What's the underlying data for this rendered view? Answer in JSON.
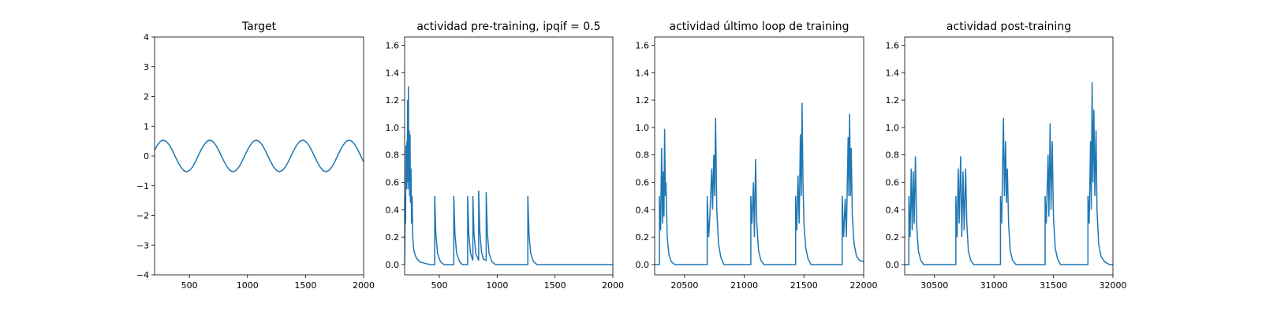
{
  "chart_data": [
    {
      "type": "line",
      "title": "Target",
      "color": "#1f77b4",
      "x": [
        200,
        225,
        250,
        275,
        300,
        325,
        350,
        375,
        400,
        425,
        450,
        475,
        500,
        525,
        550,
        575,
        600,
        625,
        650,
        675,
        700,
        725,
        750,
        775,
        800,
        825,
        850,
        875,
        900,
        925,
        950,
        975,
        1000,
        1025,
        1050,
        1075,
        1100,
        1125,
        1150,
        1175,
        1200,
        1225,
        1250,
        1275,
        1300,
        1325,
        1350,
        1375,
        1400,
        1425,
        1450,
        1475,
        1500,
        1525,
        1550,
        1575,
        1600,
        1625,
        1650,
        1675,
        1700,
        1725,
        1750,
        1775,
        1800,
        1825,
        1850,
        1875,
        1900,
        1925,
        1950,
        1975,
        2000
      ],
      "values": [
        0.2,
        0.37,
        0.49,
        0.53,
        0.49,
        0.38,
        0.21,
        0.0,
        -0.2,
        -0.37,
        -0.49,
        -0.53,
        -0.49,
        -0.38,
        -0.21,
        0.0,
        0.2,
        0.37,
        0.49,
        0.53,
        0.49,
        0.38,
        0.21,
        0.0,
        -0.2,
        -0.37,
        -0.49,
        -0.53,
        -0.49,
        -0.38,
        -0.21,
        0.0,
        0.2,
        0.37,
        0.49,
        0.53,
        0.49,
        0.38,
        0.21,
        0.0,
        -0.2,
        -0.37,
        -0.49,
        -0.53,
        -0.49,
        -0.38,
        -0.21,
        0.0,
        0.2,
        0.37,
        0.49,
        0.53,
        0.49,
        0.38,
        0.21,
        0.0,
        -0.2,
        -0.37,
        -0.49,
        -0.53,
        -0.49,
        -0.38,
        -0.21,
        0.0,
        0.2,
        0.37,
        0.49,
        0.53,
        0.49,
        0.38,
        0.21,
        0.0,
        -0.2
      ],
      "xlim": [
        200,
        2000
      ],
      "xticks": [
        500,
        1000,
        1500,
        2000
      ],
      "ylim": [
        -4,
        4
      ],
      "yticks": [
        {
          "value": -4,
          "label": "−4"
        },
        {
          "value": -3,
          "label": "−3"
        },
        {
          "value": -2,
          "label": "−2"
        },
        {
          "value": -1,
          "label": "−1"
        },
        0,
        1,
        2,
        3,
        4
      ]
    },
    {
      "type": "line",
      "title": "actividad pre-training, ipqif = 0.5",
      "color": "#1f77b4",
      "x": [
        200,
        205,
        208,
        212,
        215,
        220,
        222,
        226,
        229,
        233,
        236,
        240,
        243,
        247,
        250,
        255,
        260,
        265,
        270,
        280,
        300,
        330,
        370,
        420,
        460,
        460,
        470,
        485,
        510,
        540,
        625,
        625,
        635,
        650,
        675,
        700,
        745,
        745,
        755,
        770,
        790,
        790,
        800,
        815,
        840,
        840,
        850,
        865,
        880,
        905,
        905,
        915,
        930,
        955,
        985,
        1265,
        1265,
        1275,
        1290,
        1315,
        1345,
        1400,
        2000
      ],
      "values": [
        0,
        0.5,
        0.3,
        0.87,
        0.55,
        0.9,
        0.6,
        1.2,
        0.55,
        1.3,
        0.6,
        0.98,
        0.5,
        0.95,
        0.45,
        0.7,
        0.3,
        0.5,
        0.2,
        0.1,
        0.05,
        0.02,
        0.01,
        0,
        0,
        0.5,
        0.22,
        0.08,
        0.02,
        0,
        0,
        0.5,
        0.22,
        0.08,
        0.02,
        0,
        0,
        0.5,
        0.22,
        0.08,
        0.03,
        0.5,
        0.22,
        0.08,
        0.03,
        0.54,
        0.24,
        0.09,
        0.04,
        0.03,
        0.53,
        0.23,
        0.08,
        0.02,
        0,
        0,
        0.5,
        0.22,
        0.08,
        0.02,
        0,
        0,
        0
      ],
      "xlim": [
        200,
        2000
      ],
      "xticks": [
        500,
        1000,
        1500,
        2000
      ],
      "ylim": [
        -0.075,
        1.66
      ],
      "yticks": [
        {
          "value": 0,
          "label": "0.0"
        },
        {
          "value": 0.2,
          "label": "0.2"
        },
        {
          "value": 0.4,
          "label": "0.4"
        },
        {
          "value": 0.6,
          "label": "0.6"
        },
        {
          "value": 0.8,
          "label": "0.8"
        },
        {
          "value": 1,
          "label": "1.0"
        },
        {
          "value": 1.2,
          "label": "1.2"
        },
        {
          "value": 1.4,
          "label": "1.4"
        },
        {
          "value": 1.6,
          "label": "1.6"
        }
      ]
    },
    {
      "type": "line",
      "title": "actividad último loop de training",
      "color": "#1f77b4",
      "x": [
        20250,
        20290,
        20290,
        20300,
        20308,
        20316,
        20322,
        20328,
        20333,
        20340,
        20345,
        20355,
        20370,
        20390,
        20420,
        20690,
        20690,
        20702,
        20712,
        20728,
        20735,
        20745,
        20752,
        20760,
        20770,
        20785,
        20805,
        20830,
        21055,
        21055,
        21065,
        21077,
        21085,
        21095,
        21105,
        21120,
        21140,
        21165,
        21430,
        21430,
        21440,
        21450,
        21460,
        21470,
        21478,
        21484,
        21492,
        21500,
        21515,
        21535,
        21560,
        21820,
        21820,
        21832,
        21845,
        21855,
        21870,
        21876,
        21882,
        21890,
        21896,
        21905,
        21920,
        21940,
        21965,
        22000
      ],
      "values": [
        0,
        0,
        0.5,
        0.25,
        0.85,
        0.3,
        0.68,
        0.35,
        0.99,
        0.5,
        0.6,
        0.2,
        0.07,
        0.02,
        0,
        0,
        0.5,
        0.2,
        0.35,
        0.7,
        0.4,
        0.8,
        0.5,
        1.07,
        0.4,
        0.15,
        0.05,
        0,
        0,
        0.5,
        0.3,
        0.6,
        0.2,
        0.77,
        0.3,
        0.1,
        0.03,
        0,
        0,
        0.5,
        0.25,
        0.65,
        0.3,
        0.95,
        0.5,
        1.18,
        0.6,
        0.3,
        0.12,
        0.04,
        0,
        0,
        0.5,
        0.2,
        0.48,
        0.2,
        0.93,
        0.5,
        1.1,
        0.5,
        0.85,
        0.35,
        0.15,
        0.06,
        0.03,
        0.02
      ],
      "xlim": [
        20250,
        22000
      ],
      "xticks": [
        20500,
        21000,
        21500,
        22000
      ],
      "ylim": [
        -0.075,
        1.66
      ],
      "yticks": [
        {
          "value": 0,
          "label": "0.0"
        },
        {
          "value": 0.2,
          "label": "0.2"
        },
        {
          "value": 0.4,
          "label": "0.4"
        },
        {
          "value": 0.6,
          "label": "0.6"
        },
        {
          "value": 0.8,
          "label": "0.8"
        },
        {
          "value": 1,
          "label": "1.0"
        },
        {
          "value": 1.2,
          "label": "1.2"
        },
        {
          "value": 1.4,
          "label": "1.4"
        },
        {
          "value": 1.6,
          "label": "1.6"
        }
      ]
    },
    {
      "type": "line",
      "title": "actividad post-training",
      "color": "#1f77b4",
      "x": [
        30250,
        30285,
        30285,
        30295,
        30305,
        30313,
        30322,
        30330,
        30340,
        30350,
        30365,
        30385,
        30410,
        30680,
        30680,
        30690,
        30700,
        30708,
        30720,
        30730,
        30740,
        30750,
        30762,
        30772,
        30785,
        30805,
        30830,
        31055,
        31055,
        31065,
        31080,
        31088,
        31098,
        31105,
        31113,
        31123,
        31137,
        31157,
        31185,
        31430,
        31430,
        31440,
        31455,
        31462,
        31472,
        31480,
        31490,
        31500,
        31515,
        31535,
        31560,
        31790,
        31790,
        31800,
        31812,
        31818,
        31825,
        31832,
        31840,
        31848,
        31858,
        31866,
        31880,
        31900,
        31930,
        31970,
        32000
      ],
      "values": [
        0,
        0,
        0.5,
        0.2,
        0.7,
        0.25,
        0.68,
        0.3,
        0.79,
        0.3,
        0.1,
        0.03,
        0,
        0,
        0.5,
        0.2,
        0.7,
        0.3,
        0.79,
        0.2,
        0.68,
        0.25,
        0.7,
        0.3,
        0.1,
        0.03,
        0,
        0,
        0.5,
        0.3,
        1.07,
        0.5,
        0.9,
        0.45,
        0.7,
        0.3,
        0.1,
        0.03,
        0,
        0,
        0.5,
        0.3,
        0.8,
        0.35,
        1.03,
        0.4,
        0.9,
        0.35,
        0.12,
        0.04,
        0,
        0,
        0.5,
        0.3,
        0.9,
        0.4,
        1.33,
        0.6,
        1.13,
        0.5,
        0.98,
        0.4,
        0.15,
        0.06,
        0.02,
        0,
        0
      ],
      "xlim": [
        30250,
        32000
      ],
      "xticks": [
        30500,
        31000,
        31500,
        32000
      ],
      "ylim": [
        -0.075,
        1.66
      ],
      "yticks": [
        {
          "value": 0,
          "label": "0.0"
        },
        {
          "value": 0.2,
          "label": "0.2"
        },
        {
          "value": 0.4,
          "label": "0.4"
        },
        {
          "value": 0.6,
          "label": "0.6"
        },
        {
          "value": 0.8,
          "label": "0.8"
        },
        {
          "value": 1,
          "label": "1.0"
        },
        {
          "value": 1.2,
          "label": "1.2"
        },
        {
          "value": 1.4,
          "label": "1.4"
        },
        {
          "value": 1.6,
          "label": "1.6"
        }
      ]
    }
  ]
}
